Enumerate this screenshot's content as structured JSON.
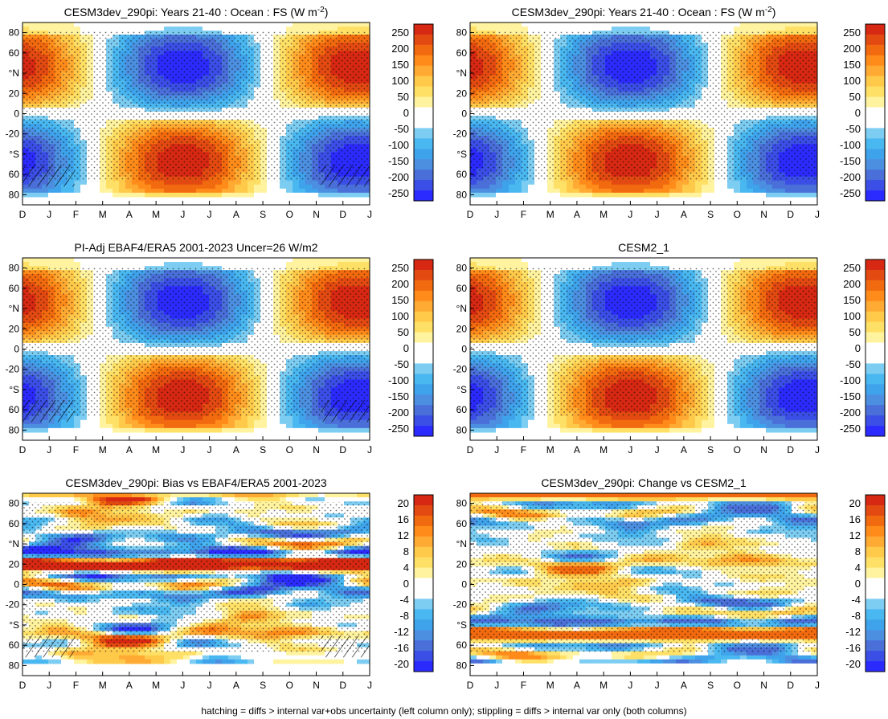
{
  "footer": "hatching = diffs > internal var+obs uncertainty (left column only); stippling = diffs > internal var only (both columns)",
  "chart_data": [
    {
      "type": "heatmap",
      "title": "CESM3dev_290pi: Years 21-40 : Ocean : FS",
      "units_label": "(W m",
      "units_exp": "-2",
      "units_close": ")",
      "x_ticks": [
        "D",
        "J",
        "F",
        "M",
        "A",
        "M",
        "J",
        "J",
        "A",
        "S",
        "O",
        "N",
        "D",
        "J"
      ],
      "y_ticks": [
        "80",
        "60",
        "°N",
        "20",
        "0",
        "-20",
        "°S",
        "60",
        "80"
      ],
      "y_range": [
        -90,
        90
      ],
      "colorbar": [
        "250",
        "200",
        "150",
        "100",
        "50",
        "0",
        "-50",
        "-100",
        "-150",
        "-200",
        "-250"
      ],
      "colorbar_range": [
        -275,
        275
      ],
      "colors": [
        "#2b2bff",
        "#3b4ee6",
        "#4a6fd9",
        "#4c8fe0",
        "#3fa3ec",
        "#4ab8f0",
        "#7dcdf2",
        "#ffffff",
        "#ffffff",
        "#fff3a0",
        "#ffe066",
        "#ffc94a",
        "#ffaa33",
        "#ff8c1a",
        "#f26a0f",
        "#e24a12",
        "#d62812"
      ],
      "pattern": "annual",
      "amplitude": 255,
      "hatch": true
    },
    {
      "type": "heatmap",
      "title": "CESM3dev_290pi: Years 21-40 : Ocean : FS",
      "units_label": "(W m",
      "units_exp": "-2",
      "units_close": ")",
      "x_ticks": [
        "D",
        "J",
        "F",
        "M",
        "A",
        "M",
        "J",
        "J",
        "A",
        "S",
        "O",
        "N",
        "D",
        "J"
      ],
      "y_ticks": [
        "80",
        "60",
        "°N",
        "20",
        "0",
        "-20",
        "°S",
        "60",
        "80"
      ],
      "y_range": [
        -90,
        90
      ],
      "colorbar": [
        "250",
        "200",
        "150",
        "100",
        "50",
        "0",
        "-50",
        "-100",
        "-150",
        "-200",
        "-250"
      ],
      "colorbar_range": [
        -275,
        275
      ],
      "pattern": "annual",
      "amplitude": 245,
      "hatch": false
    },
    {
      "type": "heatmap",
      "title": "PI-Adj EBAF4/ERA5 2001-2023 Uncer=26 W/m2",
      "x_ticks": [
        "D",
        "J",
        "F",
        "M",
        "A",
        "M",
        "J",
        "J",
        "A",
        "S",
        "O",
        "N",
        "D",
        "J"
      ],
      "y_ticks": [
        "80",
        "60",
        "°N",
        "20",
        "0",
        "-20",
        "°S",
        "60",
        "80"
      ],
      "y_range": [
        -90,
        90
      ],
      "colorbar": [
        "250",
        "200",
        "150",
        "100",
        "50",
        "0",
        "-50",
        "-100",
        "-150",
        "-200",
        "-250"
      ],
      "colorbar_range": [
        -275,
        275
      ],
      "pattern": "annual",
      "amplitude": 250,
      "hatch": true
    },
    {
      "type": "heatmap",
      "title": "CESM2_1",
      "x_ticks": [
        "D",
        "J",
        "F",
        "M",
        "A",
        "M",
        "J",
        "J",
        "A",
        "S",
        "O",
        "N",
        "D",
        "J"
      ],
      "y_ticks": [
        "80",
        "60",
        "°N",
        "20",
        "0",
        "-20",
        "°S",
        "60",
        "80"
      ],
      "y_range": [
        -90,
        90
      ],
      "colorbar": [
        "250",
        "200",
        "150",
        "100",
        "50",
        "0",
        "-50",
        "-100",
        "-150",
        "-200",
        "-250"
      ],
      "colorbar_range": [
        -275,
        275
      ],
      "pattern": "annual",
      "amplitude": 250,
      "hatch": false
    },
    {
      "type": "heatmap",
      "title": "CESM3dev_290pi: Bias vs EBAF4/ERA5 2001-2023",
      "x_ticks": [
        "D",
        "J",
        "F",
        "M",
        "A",
        "M",
        "J",
        "J",
        "A",
        "S",
        "O",
        "N",
        "D",
        "J"
      ],
      "y_ticks": [
        "80",
        "60",
        "°N",
        "20",
        "0",
        "-20",
        "°S",
        "60",
        "80"
      ],
      "y_range": [
        -90,
        90
      ],
      "colorbar": [
        "20",
        "16",
        "12",
        "8",
        "4",
        "0",
        "-4",
        "-8",
        "-12",
        "-16",
        "-20"
      ],
      "colorbar_range": [
        -22,
        22
      ],
      "pattern": "bias",
      "amplitude": 20,
      "hatch": true
    },
    {
      "type": "heatmap",
      "title": "CESM3dev_290pi: Change vs CESM2_1",
      "x_ticks": [
        "D",
        "J",
        "F",
        "M",
        "A",
        "M",
        "J",
        "J",
        "A",
        "S",
        "O",
        "N",
        "D",
        "J"
      ],
      "y_ticks": [
        "80",
        "60",
        "°N",
        "20",
        "0",
        "-20",
        "°S",
        "60",
        "80"
      ],
      "y_range": [
        -90,
        90
      ],
      "colorbar": [
        "20",
        "16",
        "12",
        "8",
        "4",
        "0",
        "-4",
        "-8",
        "-12",
        "-16",
        "-20"
      ],
      "colorbar_range": [
        -22,
        22
      ],
      "pattern": "change",
      "amplitude": 18,
      "hatch": false
    }
  ]
}
